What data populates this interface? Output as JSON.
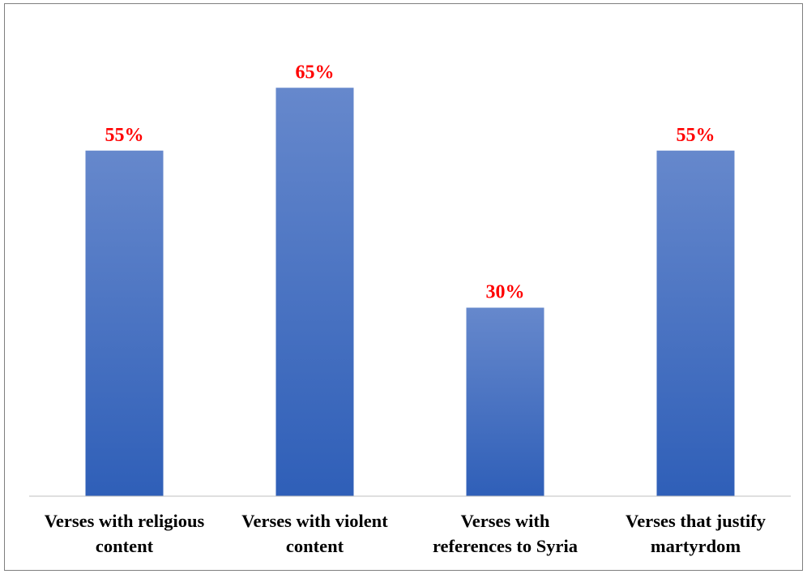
{
  "chart_data": {
    "type": "bar",
    "title": "",
    "xlabel": "",
    "ylabel": "",
    "categories": [
      [
        "Verses with religious",
        "content"
      ],
      [
        "Verses with violent",
        "content"
      ],
      [
        "Verses with",
        "references to Syria"
      ],
      [
        "Verses that justify",
        "martyrdom"
      ]
    ],
    "values": [
      55,
      65,
      30,
      55
    ],
    "data_labels": [
      "55%",
      "65%",
      "30%",
      "55%"
    ],
    "ylim": [
      0,
      70
    ],
    "grid": false,
    "legend": "none"
  },
  "colors": {
    "bar_top": "#6688cc",
    "bar_bottom": "#2f5fb8",
    "data_label": "#ff0000",
    "axis": "#bfbfbf",
    "frame": "#7f7f7f"
  }
}
